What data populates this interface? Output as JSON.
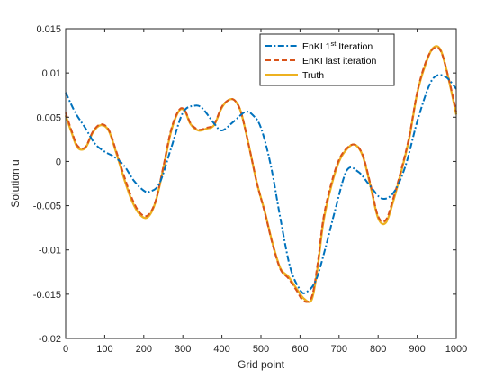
{
  "chart_data": {
    "type": "line",
    "title": "",
    "xlabel": "Grid point",
    "ylabel": "Solution u",
    "xlim": [
      0,
      1000
    ],
    "ylim": [
      -0.02,
      0.015
    ],
    "xticks": [
      0,
      100,
      200,
      300,
      400,
      500,
      600,
      700,
      800,
      900,
      1000
    ],
    "xtick_labels": [
      "0",
      "100",
      "200",
      "300",
      "400",
      "500",
      "600",
      "700",
      "800",
      "900",
      "1000"
    ],
    "yticks": [
      -0.02,
      -0.015,
      -0.01,
      -0.005,
      0,
      0.005,
      0.01,
      0.015
    ],
    "ytick_labels": [
      "-0.02",
      "-0.015",
      "-0.01",
      "-0.005",
      "0",
      "0.005",
      "0.01",
      "0.015"
    ],
    "grid": false,
    "legend_position": "top-right",
    "series": [
      {
        "name": "EnKI 1st Iteration",
        "name_main": "EnKI 1",
        "name_sup": "st",
        "name_rest": " Iteration",
        "color": "#0072BD",
        "style": "dashdot",
        "x": [
          0,
          25,
          50,
          75,
          100,
          125,
          150,
          175,
          200,
          215,
          240,
          270,
          300,
          330,
          350,
          380,
          400,
          430,
          460,
          480,
          500,
          525,
          550,
          575,
          600,
          615,
          640,
          665,
          690,
          720,
          750,
          780,
          810,
          840,
          870,
          900,
          930,
          950,
          975,
          1000
        ],
        "y": [
          0.0078,
          0.0055,
          0.0038,
          0.002,
          0.0011,
          0.0005,
          -0.0005,
          -0.0022,
          -0.0033,
          -0.0034,
          -0.0025,
          0.0015,
          0.0055,
          0.0063,
          0.006,
          0.0043,
          0.0035,
          0.0045,
          0.0056,
          0.0052,
          0.0038,
          -0.0004,
          -0.0065,
          -0.012,
          -0.0145,
          -0.0148,
          -0.0135,
          -0.0098,
          -0.0055,
          -0.001,
          -0.0012,
          -0.0028,
          -0.0042,
          -0.0035,
          -0.0005,
          0.0045,
          0.0085,
          0.0097,
          0.0095,
          0.0082
        ]
      },
      {
        "name": "EnKI last iteration",
        "color": "#D95319",
        "style": "dashed",
        "x": [
          0,
          15,
          30,
          50,
          70,
          90,
          110,
          130,
          150,
          170,
          190,
          210,
          230,
          250,
          270,
          290,
          305,
          320,
          340,
          360,
          380,
          400,
          420,
          435,
          450,
          470,
          490,
          510,
          530,
          550,
          570,
          590,
          610,
          630,
          645,
          660,
          680,
          700,
          720,
          740,
          760,
          780,
          800,
          820,
          840,
          860,
          880,
          900,
          920,
          940,
          960,
          980,
          1000
        ],
        "y": [
          0.0055,
          0.0035,
          0.0018,
          0.0016,
          0.0034,
          0.0042,
          0.0036,
          0.0011,
          -0.0017,
          -0.0042,
          -0.0058,
          -0.0061,
          -0.0045,
          -0.0006,
          0.0036,
          0.0058,
          0.0058,
          0.0043,
          0.0036,
          0.0038,
          0.0042,
          0.0062,
          0.007,
          0.0068,
          0.0054,
          0.0016,
          -0.0025,
          -0.0058,
          -0.0094,
          -0.0122,
          -0.0132,
          -0.0145,
          -0.0158,
          -0.0153,
          -0.0116,
          -0.0064,
          -0.0025,
          0.0002,
          0.0015,
          0.0019,
          0.0008,
          -0.0025,
          -0.0062,
          -0.0066,
          -0.004,
          -0.0008,
          0.0029,
          0.0078,
          0.011,
          0.0127,
          0.0125,
          0.0095,
          0.0056
        ]
      },
      {
        "name": "Truth",
        "color": "#EDB120",
        "style": "solid",
        "x": [
          0,
          15,
          30,
          50,
          70,
          90,
          110,
          130,
          150,
          170,
          190,
          210,
          230,
          250,
          270,
          290,
          305,
          320,
          340,
          360,
          380,
          400,
          420,
          435,
          450,
          470,
          490,
          510,
          530,
          550,
          570,
          590,
          610,
          630,
          645,
          660,
          680,
          700,
          720,
          740,
          760,
          780,
          800,
          820,
          840,
          860,
          880,
          900,
          920,
          940,
          960,
          980,
          1000
        ],
        "y": [
          0.0052,
          0.0033,
          0.0016,
          0.0015,
          0.0033,
          0.0041,
          0.0035,
          0.0009,
          -0.002,
          -0.0045,
          -0.006,
          -0.0063,
          -0.0046,
          -0.0008,
          0.0034,
          0.0057,
          0.0057,
          0.0042,
          0.0035,
          0.0037,
          0.0041,
          0.0061,
          0.007,
          0.0068,
          0.0054,
          0.0016,
          -0.0025,
          -0.0057,
          -0.0093,
          -0.0121,
          -0.013,
          -0.0143,
          -0.0155,
          -0.0156,
          -0.012,
          -0.0068,
          -0.0028,
          0.0,
          0.0014,
          0.0019,
          0.0007,
          -0.0027,
          -0.0064,
          -0.0069,
          -0.0043,
          -0.001,
          0.0027,
          0.0077,
          0.0108,
          0.0128,
          0.0126,
          0.0094,
          0.0053
        ]
      }
    ]
  }
}
